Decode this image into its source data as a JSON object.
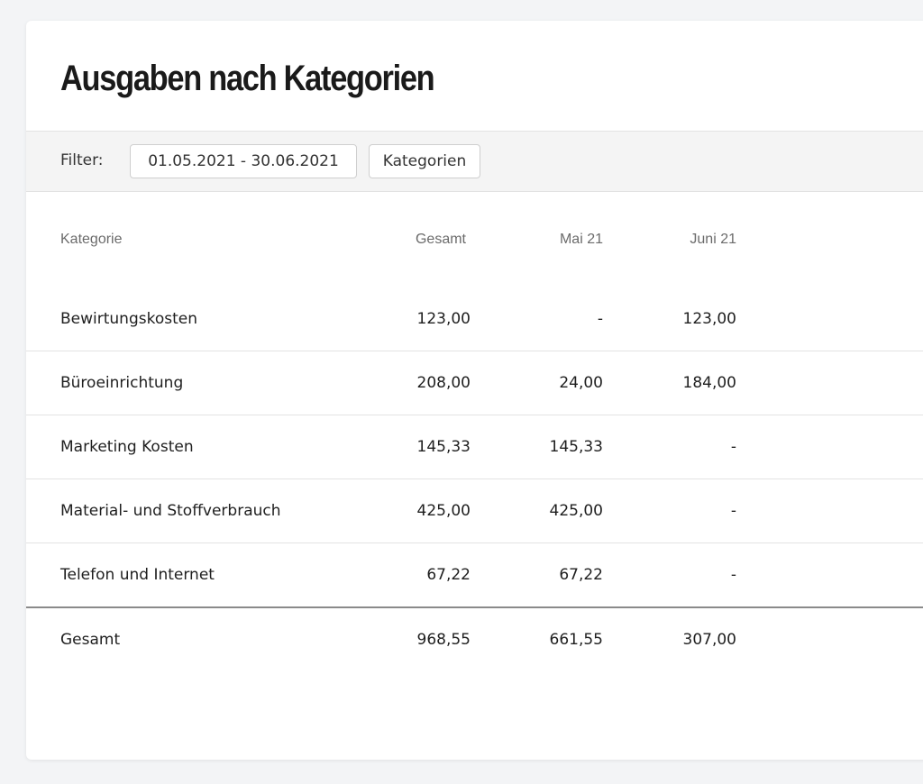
{
  "page": {
    "title": "Ausgaben nach Kategorien"
  },
  "filter": {
    "label": "Filter:",
    "date_range": "01.05.2021 - 30.06.2021",
    "categories_button": "Kategorien"
  },
  "table": {
    "headers": {
      "category": "Kategorie",
      "total": "Gesamt",
      "month1": "Mai 21",
      "month2": "Juni 21"
    },
    "rows": [
      {
        "category": "Bewirtungskosten",
        "total": "123,00",
        "month1": "-",
        "month2": "123,00"
      },
      {
        "category": "Büroeinrichtung",
        "total": "208,00",
        "month1": "24,00",
        "month2": "184,00"
      },
      {
        "category": "Marketing Kosten",
        "total": "145,33",
        "month1": "145,33",
        "month2": "-"
      },
      {
        "category": "Material- und Stoffverbrauch",
        "total": "425,00",
        "month1": "425,00",
        "month2": "-"
      },
      {
        "category": "Telefon und Internet",
        "total": "67,22",
        "month1": "67,22",
        "month2": "-"
      }
    ],
    "total_row": {
      "category": "Gesamt",
      "total": "968,55",
      "month1": "661,55",
      "month2": "307,00"
    }
  }
}
